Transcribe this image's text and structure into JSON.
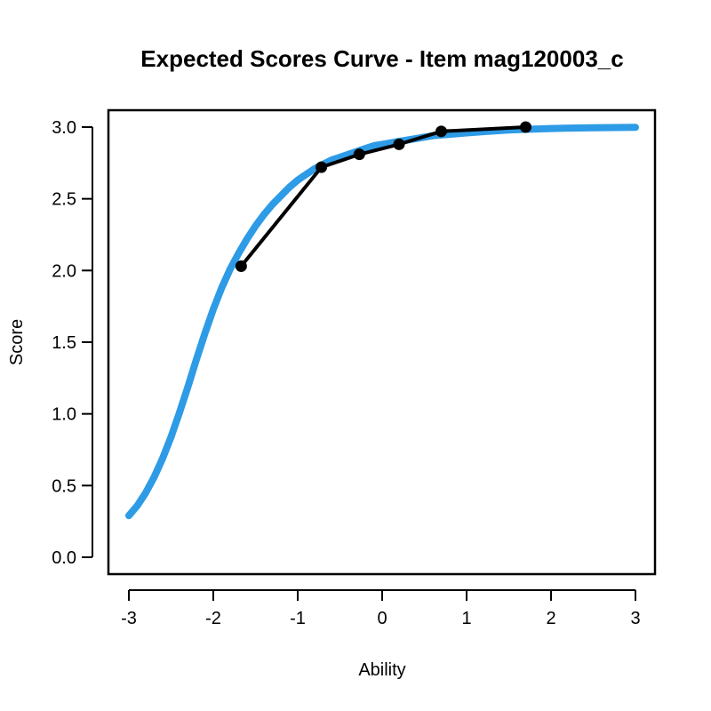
{
  "chart_data": {
    "type": "line",
    "title": "Expected Scores Curve - Item  mag120003_c",
    "xlabel": "Ability",
    "ylabel": "Score",
    "xlim": [
      -3,
      3
    ],
    "ylim": [
      0,
      3
    ],
    "xticks": [
      -3,
      -2,
      -1,
      0,
      1,
      2,
      3
    ],
    "yticks": [
      0.0,
      0.5,
      1.0,
      1.5,
      2.0,
      2.5,
      3.0
    ],
    "xtick_labels": [
      "-3",
      "-2",
      "-1",
      "0",
      "1",
      "2",
      "3"
    ],
    "ytick_labels": [
      "0.0",
      "0.5",
      "1.0",
      "1.5",
      "2.0",
      "2.5",
      "3.0"
    ],
    "grid": false,
    "legend": "none",
    "series": [
      {
        "style": "thick-line",
        "color": "#2E9BE6",
        "x": [
          -3.0,
          -2.9,
          -2.8,
          -2.7,
          -2.6,
          -2.5,
          -2.4,
          -2.3,
          -2.2,
          -2.1,
          -2.0,
          -1.9,
          -1.8,
          -1.7,
          -1.6,
          -1.5,
          -1.4,
          -1.3,
          -1.2,
          -1.1,
          -1.0,
          -0.9,
          -0.8,
          -0.7,
          -0.6,
          -0.5,
          -0.4,
          -0.3,
          -0.2,
          -0.1,
          0.0,
          0.2,
          0.4,
          0.6,
          0.8,
          1.0,
          1.25,
          1.5,
          1.75,
          2.0,
          2.25,
          2.5,
          2.75,
          3.0
        ],
        "y": [
          0.29,
          0.36,
          0.45,
          0.56,
          0.69,
          0.84,
          1.01,
          1.19,
          1.38,
          1.56,
          1.73,
          1.88,
          2.01,
          2.12,
          2.22,
          2.31,
          2.39,
          2.46,
          2.52,
          2.58,
          2.63,
          2.67,
          2.71,
          2.74,
          2.77,
          2.79,
          2.81,
          2.83,
          2.85,
          2.87,
          2.88,
          2.9,
          2.92,
          2.94,
          2.95,
          2.96,
          2.97,
          2.98,
          2.985,
          2.99,
          2.993,
          2.995,
          2.997,
          2.998
        ]
      },
      {
        "style": "line-with-points",
        "color": "#000000",
        "x": [
          -1.67,
          -0.72,
          -0.27,
          0.2,
          0.7,
          1.7
        ],
        "y": [
          2.03,
          2.72,
          2.81,
          2.88,
          2.97,
          3.0
        ]
      }
    ]
  }
}
